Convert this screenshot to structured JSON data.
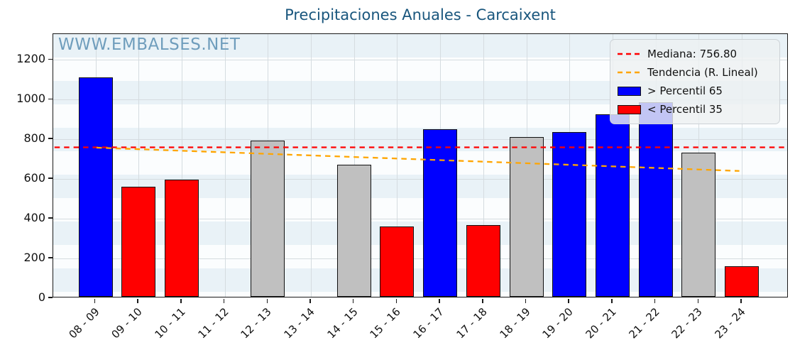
{
  "title": "Precipitaciones Anuales - Carcaixent",
  "watermark": "WWW.EMBALSES.NET",
  "legend": {
    "median_label": "Mediana: 756.80",
    "trend_label": "Tendencia (R. Lineal)",
    "p65_label": "> Percentil 65",
    "p35_label": "< Percentil 35"
  },
  "colors": {
    "p65": "#0000ff",
    "p35": "#ff0000",
    "mid": "#c0c0c0",
    "median_line": "#ff0000",
    "trend_line": "#ffa500",
    "title": "#19567d",
    "watermark": "#6f9dbc",
    "grid": "#d5dce0",
    "stripe": "#e9f2f7"
  },
  "chart_data": {
    "type": "bar",
    "title": "Precipitaciones Anuales - Carcaixent",
    "xlabel": "",
    "ylabel": "",
    "categories": [
      "08 - 09",
      "09 - 10",
      "10 - 11",
      "11 - 12",
      "12 - 13",
      "13 - 14",
      "14 - 15",
      "15 - 16",
      "16 - 17",
      "17 - 18",
      "18 - 19",
      "19 - 20",
      "20 - 21",
      "21 - 22",
      "22 - 23",
      "23 - 24"
    ],
    "values": [
      1105,
      555,
      590,
      null,
      785,
      null,
      665,
      355,
      845,
      360,
      805,
      830,
      920,
      980,
      725,
      155
    ],
    "bar_classes": [
      "p65",
      "p35",
      "p35",
      null,
      "mid",
      null,
      "mid",
      "p35",
      "p65",
      "p35",
      "mid",
      "p65",
      "p65",
      "p65",
      "mid",
      "p35"
    ],
    "median": 756.8,
    "trend_linear": {
      "start_value": 755,
      "end_value": 637
    },
    "ylim": [
      0,
      1330
    ],
    "yticks": [
      0,
      200,
      400,
      600,
      800,
      1000,
      1200
    ],
    "grid": true,
    "legend_position": "upper right",
    "legend_entries": [
      "Mediana: 756.80",
      "Tendencia (R. Lineal)",
      "> Percentil 65",
      "< Percentil 35"
    ]
  }
}
